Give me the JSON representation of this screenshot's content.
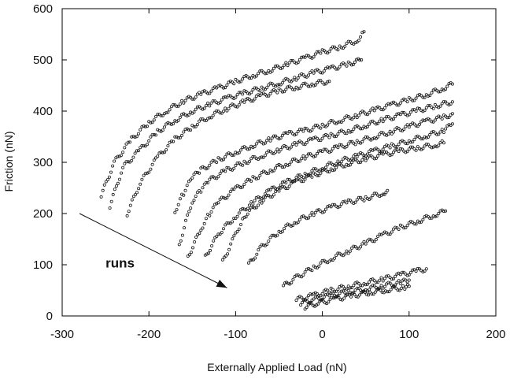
{
  "chart_data": {
    "type": "scatter",
    "title": "",
    "xlabel": "Externally Applied Load (nN)",
    "ylabel": "Friction (nN)",
    "xlim": [
      -300,
      200
    ],
    "ylim": [
      0,
      600
    ],
    "xticks": [
      "-300",
      "-200",
      "-100",
      "0",
      "100",
      "200"
    ],
    "yticks": [
      "0",
      "100",
      "200",
      "300",
      "400",
      "500",
      "600"
    ],
    "grid": false,
    "legend": "none",
    "marker": "open-circle",
    "color": "#1a1a1a",
    "annotations": [
      {
        "text": "runs",
        "x": -250,
        "y": 95
      }
    ],
    "arrow": {
      "from": [
        -280,
        200
      ],
      "to": [
        -110,
        55
      ]
    },
    "series": [
      {
        "x": [
          -255,
          -240,
          -220,
          -200,
          -180,
          -160,
          -140,
          -120,
          -100,
          -80,
          -60,
          -40,
          -20,
          0,
          20,
          40,
          48
        ],
        "y": [
          235,
          300,
          345,
          378,
          400,
          420,
          433,
          445,
          458,
          470,
          480,
          492,
          503,
          515,
          525,
          538,
          555
        ]
      },
      {
        "x": [
          -245,
          -230,
          -210,
          -190,
          -170,
          -150,
          -130,
          -110,
          -90,
          -70,
          -50,
          -30,
          -10,
          10,
          30,
          45
        ],
        "y": [
          215,
          290,
          325,
          360,
          382,
          400,
          413,
          425,
          435,
          445,
          455,
          465,
          475,
          483,
          492,
          500
        ]
      },
      {
        "x": [
          -225,
          -210,
          -190,
          -170,
          -150,
          -130,
          -110,
          -90,
          -70,
          -50,
          -30,
          -10,
          8
        ],
        "y": [
          200,
          260,
          310,
          345,
          370,
          390,
          405,
          418,
          430,
          440,
          447,
          454,
          458
        ]
      },
      {
        "x": [
          -170,
          -160,
          -150,
          -140,
          -120,
          -100,
          -80,
          -60,
          -40,
          -20,
          0,
          20,
          40,
          60,
          80,
          100,
          120,
          140,
          150
        ],
        "y": [
          205,
          240,
          270,
          285,
          305,
          320,
          333,
          345,
          355,
          362,
          372,
          382,
          392,
          402,
          412,
          422,
          432,
          445,
          453
        ]
      },
      {
        "x": [
          -165,
          -150,
          -140,
          -130,
          -110,
          -90,
          -70,
          -50,
          -30,
          -10,
          10,
          30,
          50,
          70,
          90,
          110,
          130,
          150
        ],
        "y": [
          140,
          225,
          245,
          265,
          285,
          300,
          313,
          325,
          335,
          344,
          352,
          362,
          372,
          383,
          392,
          401,
          410,
          418
        ]
      },
      {
        "x": [
          -155,
          -140,
          -130,
          -120,
          -100,
          -80,
          -60,
          -40,
          -20,
          0,
          20,
          40,
          60,
          80,
          100,
          120,
          140,
          150
        ],
        "y": [
          115,
          170,
          200,
          222,
          248,
          268,
          285,
          298,
          310,
          320,
          330,
          340,
          350,
          360,
          370,
          380,
          388,
          395
        ]
      },
      {
        "x": [
          -135,
          -120,
          -100,
          -80,
          -60,
          -40,
          -20,
          0,
          20,
          40,
          60,
          80,
          100,
          120,
          140,
          150
        ],
        "y": [
          115,
          160,
          195,
          222,
          245,
          262,
          276,
          290,
          302,
          312,
          322,
          332,
          342,
          352,
          362,
          375
        ]
      },
      {
        "x": [
          -115,
          -100,
          -90,
          -70,
          -50,
          -30,
          -10,
          10,
          30,
          50,
          70,
          90,
          110,
          130,
          140
        ],
        "y": [
          105,
          160,
          195,
          225,
          245,
          262,
          275,
          287,
          298,
          307,
          315,
          322,
          328,
          334,
          338
        ]
      },
      {
        "x": [
          -85,
          -70,
          -50,
          -30,
          -10,
          10,
          30,
          50,
          70,
          75
        ],
        "y": [
          100,
          135,
          165,
          185,
          200,
          212,
          222,
          230,
          240,
          245
        ]
      },
      {
        "x": [
          -45,
          -30,
          -10,
          10,
          30,
          50,
          70,
          90,
          110,
          130,
          142
        ],
        "y": [
          58,
          75,
          95,
          112,
          127,
          142,
          158,
          173,
          185,
          198,
          205
        ]
      },
      {
        "x": [
          -30,
          -10,
          10,
          30,
          50,
          70,
          90,
          110,
          120
        ],
        "y": [
          32,
          40,
          50,
          58,
          65,
          72,
          80,
          88,
          92
        ]
      },
      {
        "x": [
          -25,
          -10,
          10,
          30,
          50,
          70,
          90,
          100
        ],
        "y": [
          25,
          32,
          40,
          47,
          53,
          59,
          65,
          70
        ]
      },
      {
        "x": [
          -20,
          -5,
          15,
          35,
          55,
          75,
          95,
          100
        ],
        "y": [
          18,
          25,
          33,
          40,
          46,
          51,
          56,
          58
        ]
      }
    ]
  }
}
